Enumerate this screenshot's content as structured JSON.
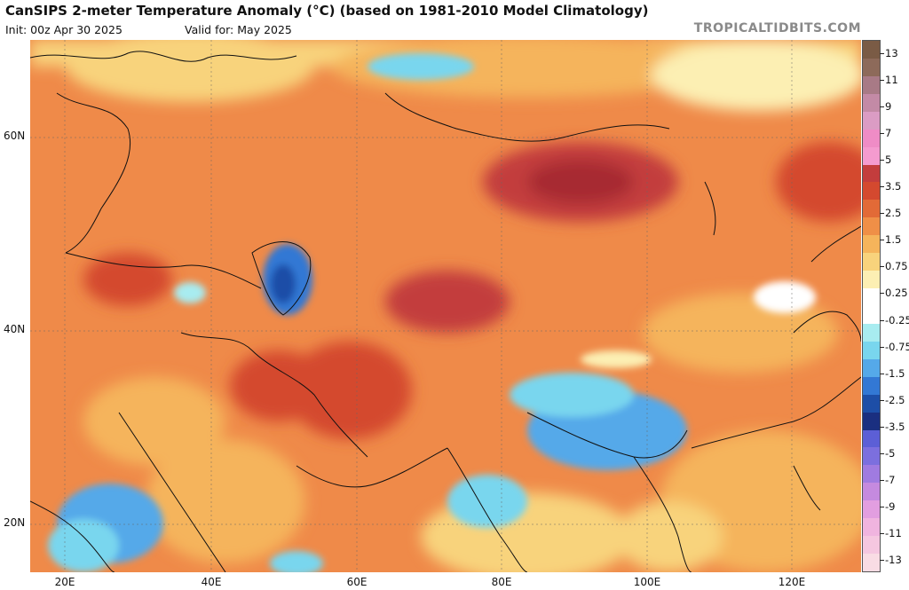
{
  "title": "CanSIPS 2-meter Temperature Anomaly (°C) (based on 1981-2010 Model Climatology)",
  "init": "Init: 00z Apr 30 2025",
  "valid": "Valid for: May 2025",
  "brand": "TROPICALTIDBITS.COM",
  "lat_labels": [
    "60N",
    "40N",
    "20N"
  ],
  "lon_labels": [
    "20E",
    "40E",
    "60E",
    "80E",
    "100E",
    "120E"
  ],
  "colorbar": {
    "labels": [
      "13",
      "11",
      "9",
      "7",
      "5",
      "3.5",
      "2.5",
      "1.5",
      "0.75",
      "0.25",
      "-0.25",
      "-0.75",
      "-1.5",
      "-2.5",
      "-3.5",
      "-5",
      "-7",
      "-9",
      "-11",
      "-13"
    ],
    "colors": [
      "#7a5b45",
      "#8d6a5a",
      "#a87a86",
      "#c38aa6",
      "#db9cc4",
      "#ef8cc6",
      "#f49bcf",
      "#c33d3d",
      "#d4492f",
      "#e26a37",
      "#ef8f47",
      "#f5b45b",
      "#f8d37c",
      "#fcefb3",
      "#ffffff",
      "#ffffff",
      "#a8ecf0",
      "#79d6ee",
      "#55a9e9",
      "#3378d4",
      "#1d4ea7",
      "#1a2f80",
      "#5c5fd6",
      "#7c6fde",
      "#a07be0",
      "#c58adf",
      "#e29ee0",
      "#f0b4df",
      "#f5c7e0",
      "#f9dce4"
    ]
  },
  "legend_scale": "temperature anomaly °C"
}
